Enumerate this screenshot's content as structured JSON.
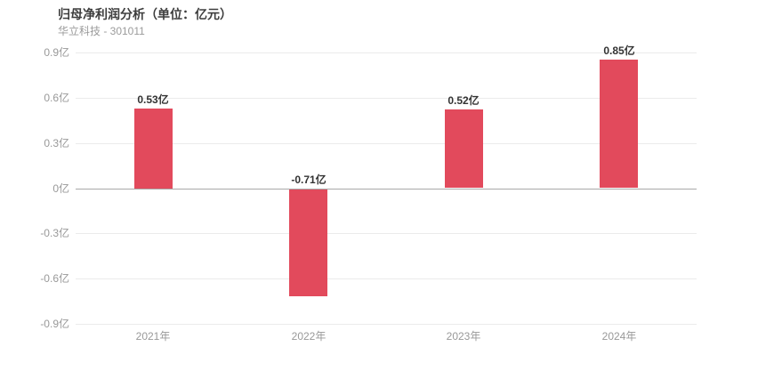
{
  "header": {
    "title": "归母净利润分析（单位：亿元）",
    "subtitle": "华立科技 - 301011"
  },
  "colors": {
    "bar": "#e24a5c",
    "grid": "#ebebeb",
    "zero_line": "#a9a9a9",
    "title_text": "#3d3d3d",
    "muted_text": "#999999",
    "value_label_text": "#333333",
    "background": "#ffffff"
  },
  "chart_data": {
    "type": "bar",
    "title": "归母净利润分析（单位：亿元）",
    "subtitle": "华立科技 - 301011",
    "categories": [
      "2021年",
      "2022年",
      "2023年",
      "2024年"
    ],
    "values": [
      0.53,
      -0.71,
      0.52,
      0.85
    ],
    "value_labels": [
      "0.53亿",
      "-0.71亿",
      "0.52亿",
      "0.85亿"
    ],
    "xlabel": "",
    "ylabel": "",
    "ylim": [
      -0.9,
      0.9
    ],
    "yticks": [
      {
        "value": 0.9,
        "label": "0.9亿"
      },
      {
        "value": 0.6,
        "label": "0.6亿"
      },
      {
        "value": 0.3,
        "label": "0.3亿"
      },
      {
        "value": 0,
        "label": "0亿"
      },
      {
        "value": -0.3,
        "label": "-0.3亿"
      },
      {
        "value": -0.6,
        "label": "-0.6亿"
      },
      {
        "value": -0.9,
        "label": "-0.9亿"
      }
    ],
    "grid": true,
    "legend_position": "none",
    "bar_color": "#e24a5c"
  }
}
